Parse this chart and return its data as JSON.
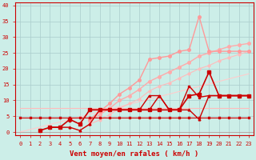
{
  "xlabel": "Vent moyen/en rafales ( km/h )",
  "background_color": "#cceee8",
  "grid_color": "#aacccc",
  "x_values": [
    0,
    1,
    2,
    3,
    4,
    5,
    6,
    7,
    8,
    9,
    10,
    11,
    12,
    13,
    14,
    15,
    16,
    17,
    18,
    19,
    20,
    21,
    22,
    23
  ],
  "ylim": [
    -1,
    41
  ],
  "yticks": [
    0,
    5,
    10,
    15,
    20,
    25,
    30,
    35,
    40
  ],
  "ytick_labels": [
    "0",
    "5",
    "10",
    "15",
    "20",
    "25",
    "30",
    "35",
    "40"
  ],
  "xtick_labels": [
    "0",
    "1",
    "2",
    "3",
    "4",
    "5",
    "6",
    "7",
    "8",
    "9",
    "10",
    "11",
    "12",
    "13",
    "14",
    "15",
    "16",
    "17",
    "18",
    "19",
    "20",
    "21",
    "22",
    "23"
  ],
  "tick_color": "#cc0000",
  "spine_color": "#cc0000",
  "xlabel_color": "#cc0000",
  "lines": [
    {
      "y": [
        7.5,
        7.5,
        7.5,
        7.5,
        7.5,
        7.5,
        7.5,
        7.5,
        7.5,
        7.5,
        7.5,
        7.5,
        7.5,
        7.5,
        7.5,
        7.5,
        7.5,
        7.5,
        7.5,
        7.5,
        7.5,
        7.5,
        7.5,
        7.5
      ],
      "color": "#ffbbbb",
      "lw": 0.8,
      "marker": null,
      "ms": 0
    },
    {
      "y": [
        0,
        0.8,
        1.6,
        2.4,
        3.2,
        4.0,
        4.8,
        5.6,
        6.4,
        7.2,
        8.0,
        8.8,
        9.6,
        10.4,
        11.2,
        12.0,
        12.8,
        13.6,
        14.4,
        15.2,
        16.0,
        16.8,
        17.6,
        18.4
      ],
      "color": "#ffcccc",
      "lw": 0.8,
      "marker": null,
      "ms": 0
    },
    {
      "y": [
        null,
        null,
        null,
        null,
        null,
        null,
        null,
        2.5,
        3.8,
        5.5,
        7.5,
        9.0,
        10.5,
        13.0,
        14.5,
        15.5,
        17.0,
        18.5,
        20.0,
        21.0,
        22.5,
        23.5,
        24.5,
        25.5
      ],
      "color": "#ffbbbb",
      "lw": 0.8,
      "marker": "o",
      "ms": 2
    },
    {
      "y": [
        null,
        null,
        null,
        null,
        null,
        null,
        null,
        3.5,
        5.5,
        7.5,
        10.0,
        11.5,
        13.5,
        16.0,
        17.5,
        19.0,
        20.5,
        22.0,
        24.0,
        25.0,
        26.0,
        27.0,
        27.5,
        28.0
      ],
      "color": "#ffaaaa",
      "lw": 1.0,
      "marker": "o",
      "ms": 2.5
    },
    {
      "y": [
        null,
        null,
        null,
        null,
        null,
        null,
        null,
        4.0,
        6.5,
        9.0,
        12.0,
        14.0,
        16.5,
        23.0,
        23.5,
        24.0,
        25.5,
        26.0,
        36.5,
        25.5,
        25.5,
        25.5,
        25.5,
        25.5
      ],
      "color": "#ff9999",
      "lw": 1.0,
      "marker": "o",
      "ms": 2.5
    },
    {
      "y": [
        4.5,
        4.5,
        4.5,
        4.5,
        4.5,
        4.5,
        4.5,
        4.5,
        4.5,
        4.5,
        4.5,
        4.5,
        4.5,
        4.5,
        4.5,
        4.5,
        4.5,
        4.5,
        4.5,
        4.5,
        4.5,
        4.5,
        4.5,
        4.5
      ],
      "color": "#cc0000",
      "lw": 0.8,
      "marker": "s",
      "ms": 2
    },
    {
      "y": [
        null,
        null,
        0.5,
        1.5,
        1.5,
        4.0,
        2.5,
        7.0,
        7.0,
        7.0,
        7.0,
        7.0,
        7.0,
        7.0,
        7.0,
        7.0,
        7.0,
        11.5,
        12.0,
        19.0,
        11.5,
        11.5,
        11.5,
        11.5
      ],
      "color": "#cc0000",
      "lw": 1.2,
      "marker": "s",
      "ms": 2.5
    },
    {
      "y": [
        null,
        null,
        null,
        null,
        null,
        3.5,
        null,
        7.0,
        7.0,
        7.0,
        7.0,
        7.0,
        7.0,
        11.5,
        11.5,
        7.0,
        7.0,
        14.5,
        11.0,
        11.5,
        11.5,
        11.5,
        11.5,
        11.5
      ],
      "color": "#cc0000",
      "lw": 1.0,
      "marker": "s",
      "ms": 2
    },
    {
      "y": [
        null,
        null,
        null,
        1.5,
        1.5,
        1.5,
        0.5,
        2.5,
        7.0,
        7.0,
        7.0,
        7.0,
        7.0,
        7.0,
        11.5,
        7.0,
        7.0,
        7.0,
        4.0,
        11.5,
        11.5,
        11.5,
        11.5,
        11.5
      ],
      "color": "#cc0000",
      "lw": 1.0,
      "marker": "^",
      "ms": 2
    },
    {
      "y": [
        null,
        null,
        null,
        null,
        null,
        null,
        null,
        null,
        null,
        null,
        null,
        null,
        null,
        null,
        null,
        null,
        null,
        null,
        null,
        null,
        null,
        null,
        null,
        null
      ],
      "color": "#dd3333",
      "lw": 1.0,
      "marker": "s",
      "ms": 2
    }
  ]
}
